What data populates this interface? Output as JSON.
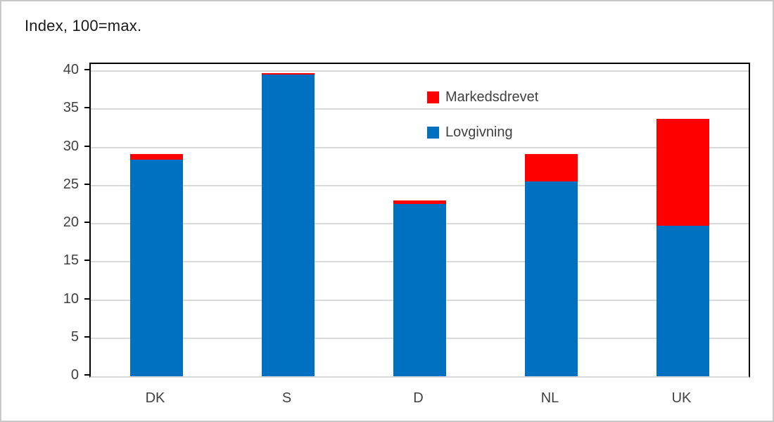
{
  "title": "Index, 100=max.",
  "chart_data": {
    "type": "bar",
    "stacked": true,
    "title": "Index, 100=max.",
    "categories": [
      "DK",
      "S",
      "D",
      "NL",
      "UK"
    ],
    "series": [
      {
        "name": "Lovgivning",
        "color": "#0070C0",
        "values": [
          28.4,
          39.5,
          22.6,
          25.5,
          19.7
        ]
      },
      {
        "name": "Markedsdrevet",
        "color": "#FF0000",
        "values": [
          0.7,
          0.2,
          0.5,
          3.6,
          14.0
        ]
      }
    ],
    "totals": [
      29.1,
      39.7,
      23.1,
      29.1,
      33.7
    ],
    "xlabel": "",
    "ylabel": "",
    "ylim": [
      0,
      40
    ],
    "yticks": [
      0,
      5,
      10,
      15,
      20,
      25,
      30,
      35,
      40
    ],
    "grid": true,
    "legend": {
      "position": "inside-top-center",
      "entries": [
        {
          "label": "Markedsdrevet",
          "color": "#FF0000"
        },
        {
          "label": "Lovgivning",
          "color": "#0070C0"
        }
      ]
    },
    "colors": {
      "lovgivning": "#0070C0",
      "markedsdrevet": "#FF0000",
      "gridline": "#D9D9D9",
      "axis_line": "#000000",
      "tick_text": "#404040",
      "title_text": "#1A1A1A",
      "background": "#FFFFFF",
      "canvas_border": "#C8C8C8"
    }
  }
}
